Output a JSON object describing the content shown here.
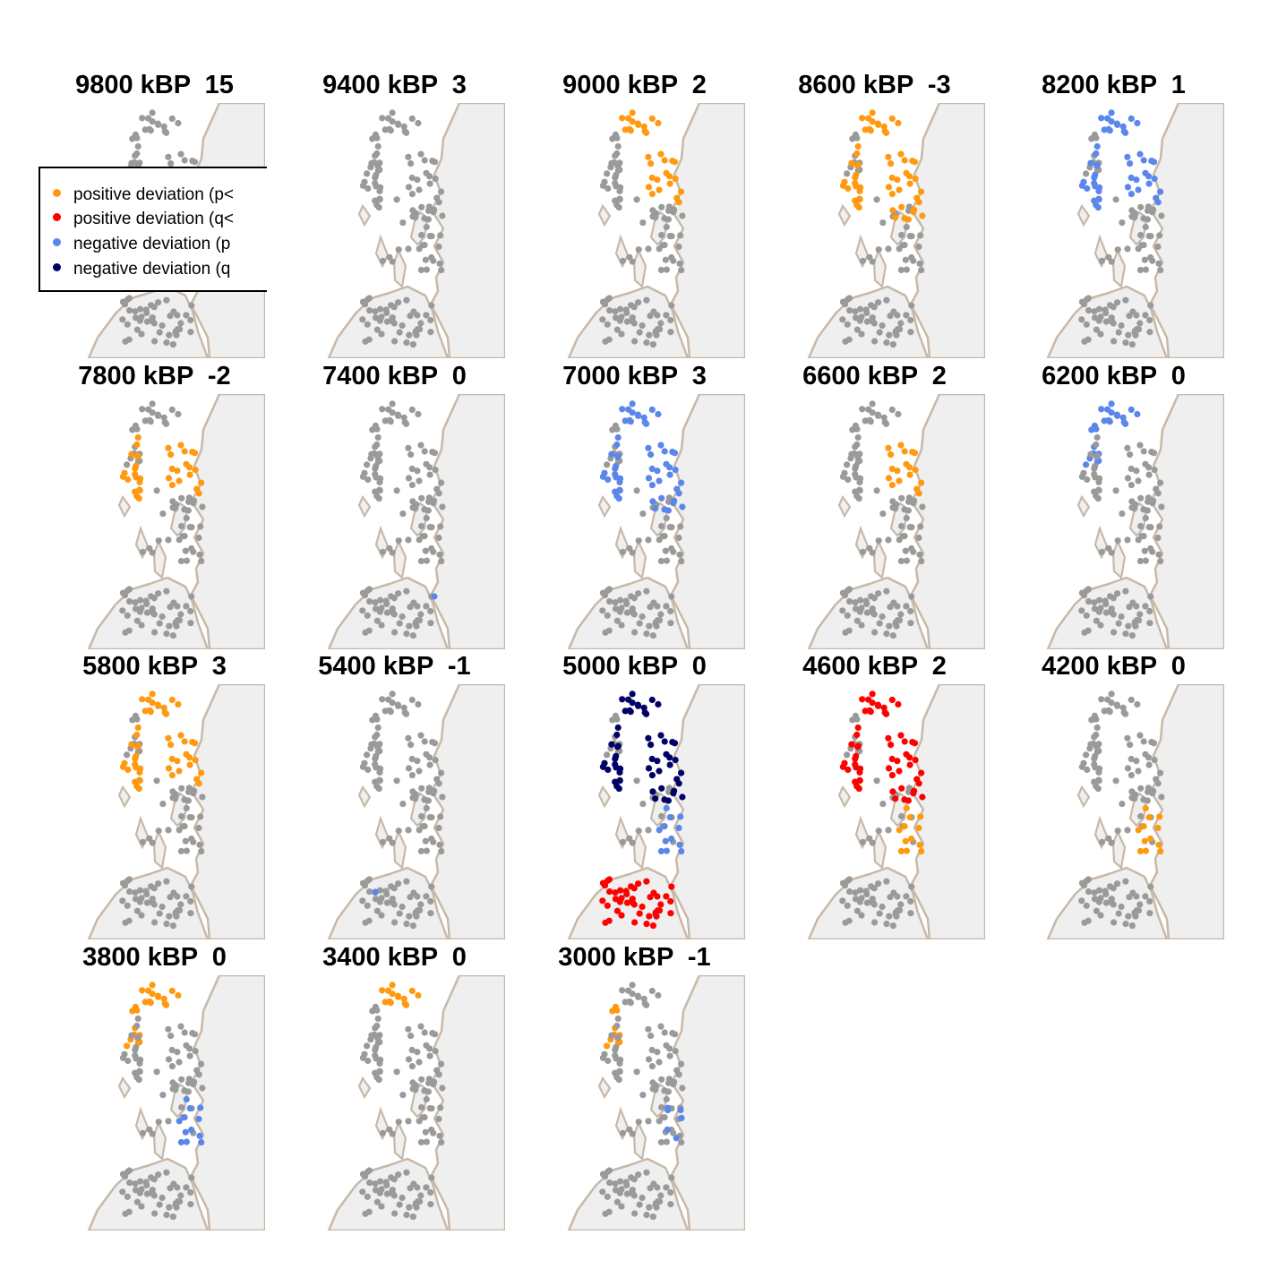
{
  "colors": {
    "land": "#efefef",
    "coast": "#c8b8a8",
    "no_deviation": "#9a9a9a",
    "positive_p": "#ff9a10",
    "positive_q": "#ff0000",
    "negative_p": "#5b86ea",
    "negative_q": "#000066"
  },
  "legend": {
    "items": [
      {
        "label": "positive deviation (p<",
        "color": "#ff9a10",
        "icon": "dot-icon"
      },
      {
        "label": "positive deviation (q<",
        "color": "#ff0000",
        "icon": "dot-icon"
      },
      {
        "label": "negative deviation (p",
        "color": "#5b86ea",
        "icon": "dot-icon"
      },
      {
        "label": "negative deviation (q",
        "color": "#000066",
        "icon": "dot-icon"
      }
    ]
  },
  "panels": [
    {
      "time": "9800 kBP",
      "value": "15",
      "highlight": []
    },
    {
      "time": "9400 kBP",
      "value": "3",
      "highlight": []
    },
    {
      "time": "9000 kBP",
      "value": "2",
      "highlight": [
        {
          "region": "north-isles",
          "color": "positive_p"
        },
        {
          "region": "east-coast-north",
          "color": "positive_p"
        }
      ]
    },
    {
      "time": "8600 kBP",
      "value": "-3",
      "highlight": [
        {
          "region": "north-isles",
          "color": "positive_p"
        },
        {
          "region": "west-isles",
          "color": "positive_p"
        },
        {
          "region": "east-coast-north",
          "color": "positive_p"
        },
        {
          "region": "east-coast-mid",
          "color": "positive_p"
        }
      ]
    },
    {
      "time": "8200 kBP",
      "value": "1",
      "highlight": [
        {
          "region": "north-isles",
          "color": "negative_p"
        },
        {
          "region": "west-isles",
          "color": "negative_p"
        },
        {
          "region": "east-coast-north",
          "color": "negative_p"
        }
      ]
    },
    {
      "time": "7800 kBP",
      "value": "-2",
      "highlight": [
        {
          "region": "west-isles",
          "color": "positive_p"
        },
        {
          "region": "east-coast-north",
          "color": "positive_p"
        }
      ]
    },
    {
      "time": "7400 kBP",
      "value": "0",
      "highlight": [
        {
          "region": "single-south",
          "color": "negative_p"
        }
      ]
    },
    {
      "time": "7000 kBP",
      "value": "3",
      "highlight": [
        {
          "region": "north-isles",
          "color": "negative_p"
        },
        {
          "region": "west-isles",
          "color": "negative_p"
        },
        {
          "region": "east-coast-north",
          "color": "negative_p"
        },
        {
          "region": "east-coast-mid",
          "color": "negative_p"
        }
      ]
    },
    {
      "time": "6600 kBP",
      "value": "2",
      "highlight": [
        {
          "region": "east-coast-north",
          "color": "positive_p"
        }
      ]
    },
    {
      "time": "6200 kBP",
      "value": "0",
      "highlight": [
        {
          "region": "north-isles",
          "color": "negative_p"
        },
        {
          "region": "west-isles-top",
          "color": "negative_p"
        }
      ]
    },
    {
      "time": "5800 kBP",
      "value": "3",
      "highlight": [
        {
          "region": "north-isles",
          "color": "positive_p"
        },
        {
          "region": "west-isles",
          "color": "positive_p"
        },
        {
          "region": "east-coast-north",
          "color": "positive_p"
        }
      ]
    },
    {
      "time": "5400 kBP",
      "value": "-1",
      "highlight": [
        {
          "region": "single-sw",
          "color": "negative_p"
        }
      ]
    },
    {
      "time": "5000 kBP",
      "value": "0",
      "highlight": [
        {
          "region": "north-isles",
          "color": "negative_q"
        },
        {
          "region": "west-isles",
          "color": "negative_q"
        },
        {
          "region": "east-coast-north",
          "color": "negative_q"
        },
        {
          "region": "east-coast-mid",
          "color": "negative_q"
        },
        {
          "region": "lower-coast",
          "color": "negative_p"
        },
        {
          "region": "south-block",
          "color": "positive_q"
        }
      ]
    },
    {
      "time": "4600 kBP",
      "value": "2",
      "highlight": [
        {
          "region": "north-isles",
          "color": "positive_q"
        },
        {
          "region": "west-isles",
          "color": "positive_q"
        },
        {
          "region": "east-coast-north",
          "color": "positive_q"
        },
        {
          "region": "east-coast-mid",
          "color": "positive_q"
        },
        {
          "region": "lower-coast",
          "color": "positive_p"
        }
      ]
    },
    {
      "time": "4200 kBP",
      "value": "0",
      "highlight": [
        {
          "region": "lower-coast",
          "color": "positive_p"
        }
      ]
    },
    {
      "time": "3800 kBP",
      "value": "0",
      "highlight": [
        {
          "region": "north-isles",
          "color": "positive_p"
        },
        {
          "region": "west-isles-top",
          "color": "positive_p"
        },
        {
          "region": "lower-coast",
          "color": "negative_p"
        }
      ]
    },
    {
      "time": "3400 kBP",
      "value": "0",
      "highlight": [
        {
          "region": "north-isles",
          "color": "positive_p"
        }
      ]
    },
    {
      "time": "3000 kBP",
      "value": "-1",
      "highlight": [
        {
          "region": "west-isles-top",
          "color": "positive_p"
        },
        {
          "region": "lower-coast-small",
          "color": "negative_p"
        }
      ]
    }
  ]
}
